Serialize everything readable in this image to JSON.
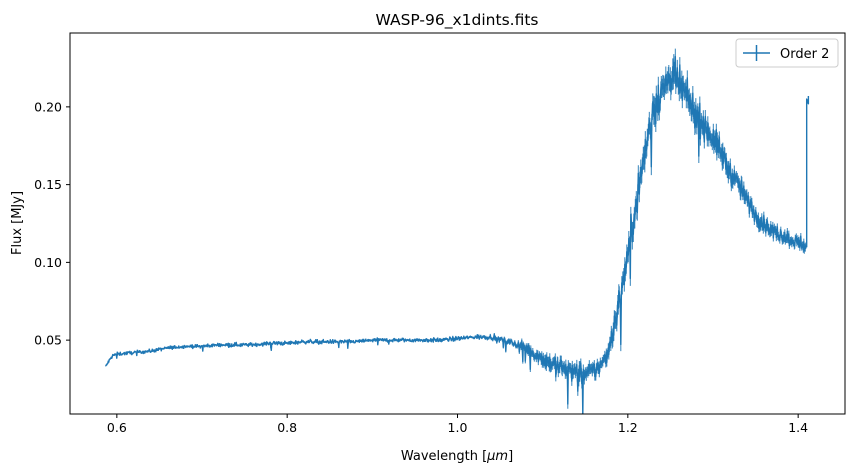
{
  "chart_data": {
    "type": "line",
    "title": "WASP-96_x1dints.fits",
    "xlabel_prefix": "Wavelength [",
    "xlabel_unit": "μm",
    "xlabel_suffix": "]",
    "ylabel": "Flux [MJy]",
    "xlim": [
      0.545,
      1.455
    ],
    "ylim": [
      0.0025,
      0.2475
    ],
    "xticks": [
      0.6,
      0.8,
      1.0,
      1.2,
      1.4
    ],
    "xtick_labels": [
      "0.6",
      "0.8",
      "1.0",
      "1.2",
      "1.4"
    ],
    "yticks": [
      0.05,
      0.1,
      0.15,
      0.2
    ],
    "ytick_labels": [
      "0.05",
      "0.10",
      "0.15",
      "0.20"
    ],
    "legend_position": "top-right",
    "series": [
      {
        "name": "Order 2",
        "color": "#1f77b4",
        "x": [
          0.587,
          0.59,
          0.595,
          0.6,
          0.62,
          0.64,
          0.66,
          0.68,
          0.7,
          0.72,
          0.74,
          0.76,
          0.78,
          0.8,
          0.82,
          0.84,
          0.86,
          0.88,
          0.9,
          0.92,
          0.94,
          0.96,
          0.98,
          1.0,
          1.02,
          1.04,
          1.06,
          1.08,
          1.1,
          1.11,
          1.12,
          1.13,
          1.14,
          1.15,
          1.16,
          1.17,
          1.175,
          1.18,
          1.19,
          1.2,
          1.21,
          1.22,
          1.23,
          1.24,
          1.25,
          1.26,
          1.27,
          1.28,
          1.29,
          1.3,
          1.31,
          1.32,
          1.33,
          1.34,
          1.35,
          1.36,
          1.37,
          1.38,
          1.39,
          1.4,
          1.405,
          1.409,
          1.41
        ],
        "y": [
          0.033,
          0.036,
          0.04,
          0.041,
          0.042,
          0.043,
          0.045,
          0.046,
          0.046,
          0.047,
          0.047,
          0.047,
          0.048,
          0.048,
          0.049,
          0.049,
          0.049,
          0.049,
          0.05,
          0.05,
          0.05,
          0.05,
          0.05,
          0.051,
          0.052,
          0.052,
          0.049,
          0.045,
          0.038,
          0.035,
          0.033,
          0.031,
          0.029,
          0.028,
          0.03,
          0.035,
          0.04,
          0.05,
          0.075,
          0.105,
          0.14,
          0.17,
          0.2,
          0.21,
          0.22,
          0.215,
          0.205,
          0.195,
          0.188,
          0.18,
          0.17,
          0.158,
          0.15,
          0.14,
          0.13,
          0.125,
          0.12,
          0.118,
          0.115,
          0.113,
          0.112,
          0.11,
          0.205
        ],
        "noise": [
          0.0008,
          0.0008,
          0.0008,
          0.0008,
          0.0008,
          0.0008,
          0.0008,
          0.0008,
          0.0008,
          0.0008,
          0.0009,
          0.0009,
          0.0009,
          0.0009,
          0.0009,
          0.0009,
          0.0009,
          0.0009,
          0.0009,
          0.0009,
          0.0009,
          0.0009,
          0.001,
          0.001,
          0.001,
          0.0012,
          0.0015,
          0.0025,
          0.004,
          0.0045,
          0.005,
          0.005,
          0.005,
          0.005,
          0.0045,
          0.004,
          0.0045,
          0.006,
          0.007,
          0.008,
          0.0085,
          0.009,
          0.009,
          0.009,
          0.009,
          0.0085,
          0.008,
          0.0075,
          0.007,
          0.0065,
          0.006,
          0.0055,
          0.005,
          0.0045,
          0.0042,
          0.004,
          0.0038,
          0.0036,
          0.0035,
          0.0035,
          0.0035,
          0.0035,
          0.002
        ]
      }
    ]
  }
}
